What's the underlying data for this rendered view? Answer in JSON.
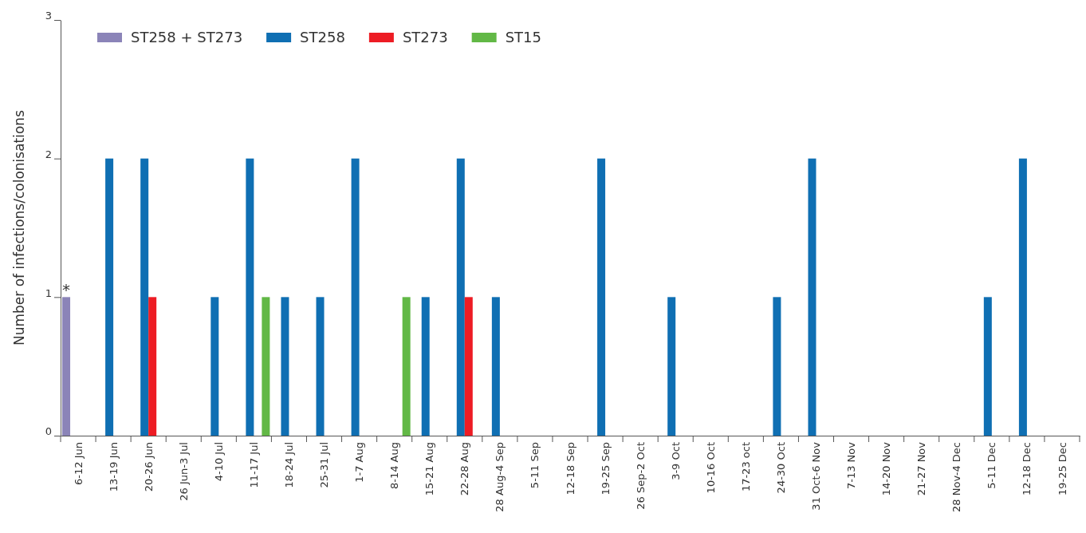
{
  "chart_data": {
    "type": "bar",
    "ylabel": "Number of infections/colonisations",
    "categories": [
      "6-12 Jun",
      "13-19 Jun",
      "20-26 Jun",
      "26 Jun-3 Jul",
      "4-10 Jul",
      "11-17 Jul",
      "18-24 Jul",
      "25-31 Jul",
      "1-7 Aug",
      "8-14 Aug",
      "15-21 Aug",
      "22-28 Aug",
      "28 Aug-4 Sep",
      "5-11 Sep",
      "12-18 Sep",
      "19-25 Sep",
      "26 Sep-2 Oct",
      "3-9 Oct",
      "10-16 Oct",
      "17-23 oct",
      "24-30 Oct",
      "31 Oct-6 Nov",
      "7-13 Nov",
      "14-20 Nov",
      "21-27 Nov",
      "28 Nov-4 Dec",
      "5-11 Dec",
      "12-18 Dec",
      "19-25 Dec"
    ],
    "series": [
      {
        "name": "ST258 + ST273",
        "color": "#8b84b8",
        "values": [
          1,
          0,
          0,
          0,
          0,
          0,
          0,
          0,
          0,
          0,
          0,
          0,
          0,
          0,
          0,
          0,
          0,
          0,
          0,
          0,
          0,
          0,
          0,
          0,
          0,
          0,
          0,
          0,
          0
        ]
      },
      {
        "name": "ST258",
        "color": "#0f6fb3",
        "values": [
          0,
          2,
          2,
          0,
          1,
          2,
          1,
          1,
          2,
          0,
          1,
          2,
          1,
          0,
          0,
          2,
          0,
          1,
          0,
          0,
          1,
          2,
          0,
          0,
          0,
          0,
          1,
          2,
          0
        ]
      },
      {
        "name": "ST273",
        "color": "#ed1c24",
        "values": [
          0,
          0,
          1,
          0,
          0,
          0,
          0,
          0,
          0,
          0,
          0,
          1,
          0,
          0,
          0,
          0,
          0,
          0,
          0,
          0,
          0,
          0,
          0,
          0,
          0,
          0,
          0,
          0,
          0
        ]
      },
      {
        "name": "ST15",
        "color": "#62b846",
        "values": [
          0,
          0,
          0,
          0,
          0,
          1,
          0,
          0,
          0,
          1,
          0,
          0,
          0,
          0,
          0,
          0,
          0,
          0,
          0,
          0,
          0,
          0,
          0,
          0,
          0,
          0,
          0,
          0,
          0
        ]
      }
    ],
    "ylim": [
      0,
      3
    ],
    "yticks": [
      0,
      1,
      2,
      3
    ],
    "grid": false,
    "legend": "top left",
    "annotations": [
      "*"
    ]
  }
}
